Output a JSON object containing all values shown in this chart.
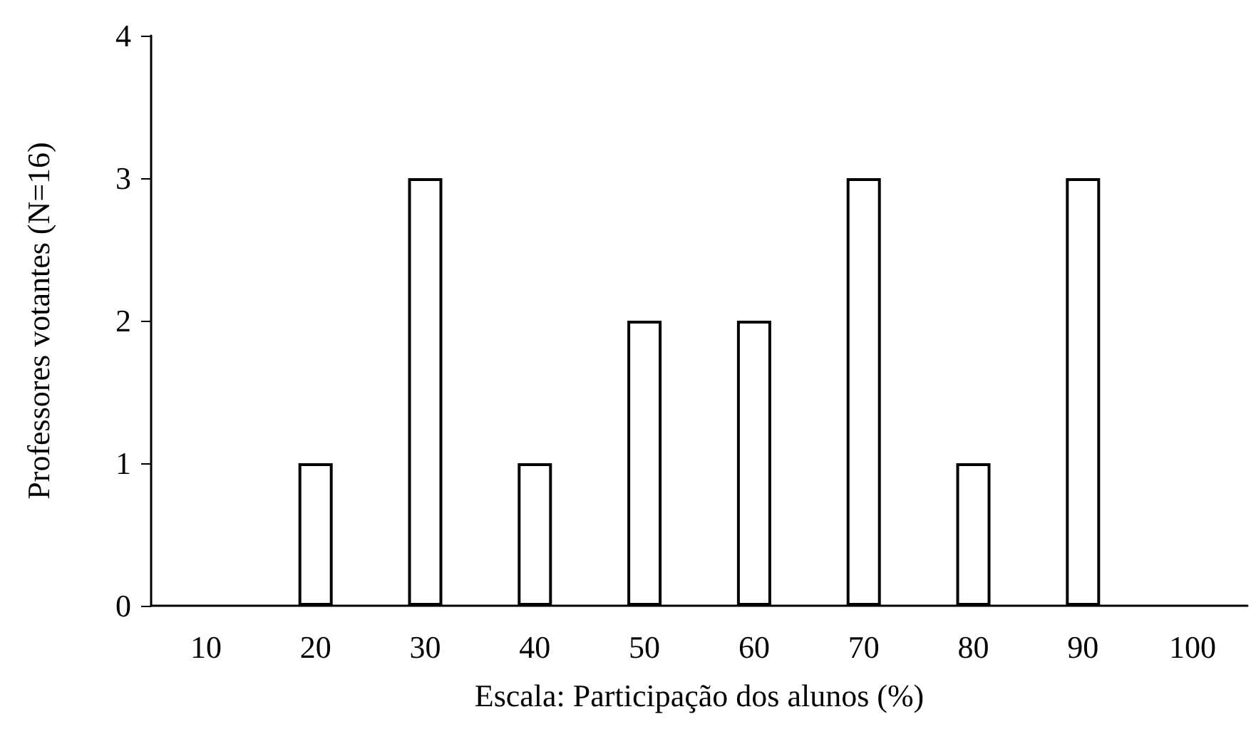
{
  "chart_data": {
    "type": "bar",
    "xlabel": "Escala: Participação dos alunos (%)",
    "ylabel": "Professores votantes (N=16)",
    "categories": [
      "10",
      "20",
      "30",
      "40",
      "50",
      "60",
      "70",
      "80",
      "90",
      "100"
    ],
    "values": [
      0,
      1,
      3,
      1,
      2,
      2,
      3,
      1,
      3,
      0
    ],
    "color": "#ffffff",
    "ylim": [
      0,
      4
    ],
    "yticks": [
      0,
      1,
      2,
      3,
      4
    ],
    "grid": false
  }
}
